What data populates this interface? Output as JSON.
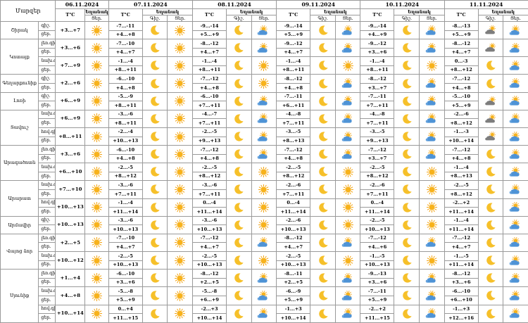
{
  "colors": {
    "sun": "#f7b21c",
    "sun_ray": "#f3a312",
    "moon": "#f6c02a",
    "cloud": "#4e93d6",
    "cloud_light": "#7fb4e6",
    "dark_cloud": "#7d7d7d",
    "grid": "#9a9a9a"
  },
  "header": {
    "corner": "Մարզեր",
    "dates": [
      "06.11.2024",
      "07.11.2024",
      "08.11.2024",
      "09.11.2024",
      "10.11.2024",
      "11.11.2024"
    ],
    "temp_label": "T°C",
    "weather_label": "Եղանակ",
    "day_label": "Ցեր.",
    "night_label": "Գիշ."
  },
  "icon_names": {
    "sun": "sun-icon",
    "moon": "moon-icon",
    "sun_cloud": "partly-cloudy-icon",
    "moon_cloud": "moon-cloud-icon",
    "dark_cloud": "cloudy-icon"
  },
  "rows": [
    {
      "region": "Շիրակ",
      "subs": [
        {
          "tod": "",
          "t": [
            "գիշ.",
            "ցեր."
          ],
          "d0": [
            "+3...+7",
            "sun"
          ],
          "days": [
            [
              "-7...-11",
              "+4...+8",
              "moon",
              "sun"
            ],
            [
              "-9...-14",
              "+5...+9",
              "moon",
              "sun_cloud"
            ],
            [
              "-9...-14",
              "+5...+9",
              "moon",
              "sun_cloud"
            ],
            [
              "-9...-14",
              "+4...+9",
              "moon",
              "sun_cloud"
            ],
            [
              "-8...-13",
              "+5...+9",
              "dark_cloud",
              "sun_cloud"
            ]
          ]
        }
      ]
    },
    {
      "region": "Կոտայք",
      "subs": [
        {
          "tod": "լեռ.",
          "t": [
            "գիշ.",
            "ցեր."
          ],
          "d0": [
            "+3...+6",
            "sun"
          ],
          "days": [
            [
              "-7...-10",
              "+4...+7",
              "moon",
              "sun"
            ],
            [
              "-8...-12",
              "+4...+7",
              "moon",
              "sun_cloud"
            ],
            [
              "-9...-12",
              "+4...+7",
              "moon",
              "sun_cloud"
            ],
            [
              "-9...-12",
              "+3...+6",
              "moon",
              "sun_cloud"
            ],
            [
              "-8...-12",
              "+4...+7",
              "dark_cloud",
              "sun_cloud"
            ]
          ]
        },
        {
          "tod": "նախ.",
          "t": [
            "գիշ.",
            "ցեր."
          ],
          "d0": [
            "+7...+9",
            "sun"
          ],
          "days": [
            [
              "-1...-4",
              "+8...+11",
              "moon",
              "sun"
            ],
            [
              "-1...-4",
              "+8...+11",
              "moon",
              "sun"
            ],
            [
              "-1...-4",
              "+8...+11",
              "moon",
              "sun"
            ],
            [
              "-1...-4",
              "+8...+11",
              "moon",
              "sun"
            ],
            [
              "0...-3",
              "+8...+12",
              "moon",
              "sun_cloud"
            ]
          ]
        }
      ]
    },
    {
      "region": "Գեղարքունիք",
      "subs": [
        {
          "tod": "",
          "t": [
            "գիշ.",
            "ցեր."
          ],
          "d0": [
            "+2...+6",
            "sun"
          ],
          "days": [
            [
              "-6...-10",
              "+4...+8",
              "moon",
              "sun"
            ],
            [
              "-7...-12",
              "+4...+8",
              "moon",
              "sun"
            ],
            [
              "-8...-12",
              "+4...+8",
              "moon",
              "sun_cloud"
            ],
            [
              "-8...-12",
              "+3...+7",
              "moon",
              "sun_cloud"
            ],
            [
              "-7...-12",
              "+4...+8",
              "moon",
              "sun_cloud"
            ]
          ]
        }
      ]
    },
    {
      "region": "Լոռի",
      "subs": [
        {
          "tod": "",
          "t": [
            "գիշ.",
            "ցեր."
          ],
          "d0": [
            "+6...+9",
            "sun"
          ],
          "days": [
            [
              "-5...-9",
              "+8...+11",
              "moon",
              "sun"
            ],
            [
              "-6...-10",
              "+7...+11",
              "moon",
              "sun_cloud"
            ],
            [
              "-7...-11",
              "+6...+11",
              "moon",
              "sun_cloud"
            ],
            [
              "-7...-11",
              "+7...+11",
              "moon",
              "sun_cloud"
            ],
            [
              "-5...-10",
              "+5...+9",
              "dark_cloud",
              "sun_cloud"
            ]
          ]
        }
      ]
    },
    {
      "region": "Տավուշ",
      "subs": [
        {
          "tod": "նախ.",
          "t": [
            "գիշ.",
            "ցեր."
          ],
          "d0": [
            "+6...+9",
            "sun"
          ],
          "days": [
            [
              "-3...-6",
              "+8...+11",
              "moon",
              "sun"
            ],
            [
              "-4...-7",
              "+7...+11",
              "moon",
              "sun_cloud"
            ],
            [
              "-4...-8",
              "+7...+11",
              "moon",
              "sun_cloud"
            ],
            [
              "-4...-8",
              "+7...+11",
              "moon",
              "sun_cloud"
            ],
            [
              "-2...-6",
              "+8...+12",
              "dark_cloud",
              "sun_cloud"
            ]
          ]
        },
        {
          "tod": "հով.",
          "t": [
            "գիշ.",
            "ցեր."
          ],
          "d0": [
            "+8...+11",
            "sun"
          ],
          "days": [
            [
              "-2...-4",
              "+10...+13",
              "moon",
              "sun"
            ],
            [
              "-2...-5",
              "+9...+13",
              "moon",
              "sun_cloud"
            ],
            [
              "-3...-5",
              "+8...+13",
              "moon",
              "sun_cloud"
            ],
            [
              "-3...-5",
              "+9...+13",
              "moon",
              "sun_cloud"
            ],
            [
              "-1...-3",
              "+10...+14",
              "dark_cloud",
              "sun_cloud"
            ]
          ]
        }
      ]
    },
    {
      "region": "Արագածոտն",
      "subs": [
        {
          "tod": "լեռ.",
          "t": [
            "գիշ.",
            "ցեր."
          ],
          "d0": [
            "+3...+6",
            "sun"
          ],
          "days": [
            [
              "-6...-10",
              "+4...+8",
              "moon",
              "sun"
            ],
            [
              "-7...-12",
              "+4...+8",
              "moon",
              "sun_cloud"
            ],
            [
              "-7...-12",
              "+4...+8",
              "moon",
              "sun_cloud"
            ],
            [
              "-7...-12",
              "+3...+7",
              "moon",
              "sun_cloud"
            ],
            [
              "-7...-12",
              "+4...+8",
              "moon",
              "sun_cloud"
            ]
          ]
        },
        {
          "tod": "նախ.",
          "t": [
            "գիշ.",
            "ցեր."
          ],
          "d0": [
            "+6...+10",
            "sun"
          ],
          "days": [
            [
              "-2...-5",
              "+8...+12",
              "moon",
              "sun"
            ],
            [
              "-2...-5",
              "+8...+12",
              "moon",
              "sun"
            ],
            [
              "-2...-5",
              "+8...+12",
              "moon",
              "sun"
            ],
            [
              "-2...-5",
              "+8...+12",
              "moon",
              "sun"
            ],
            [
              "-1...-4",
              "+8...+13",
              "moon",
              "sun_cloud"
            ]
          ]
        }
      ]
    },
    {
      "region": "Արարատ",
      "subs": [
        {
          "tod": "նախ.",
          "t": [
            "գիշ.",
            "ցեր."
          ],
          "d0": [
            "+7...+10",
            "sun"
          ],
          "days": [
            [
              "-3...-6",
              "+7...+11",
              "moon",
              "sun"
            ],
            [
              "-3...-6",
              "+7...+11",
              "moon",
              "sun"
            ],
            [
              "-2...-6",
              "+7...+11",
              "moon",
              "sun"
            ],
            [
              "-2...-6",
              "+7...+11",
              "moon",
              "sun"
            ],
            [
              "-2...-5",
              "+8...+12",
              "moon",
              "sun_cloud"
            ]
          ]
        },
        {
          "tod": "հով.",
          "t": [
            "գիշ.",
            "ցեր."
          ],
          "d0": [
            "+10...+13",
            "sun"
          ],
          "days": [
            [
              "-1...-4",
              "+11...+14",
              "moon",
              "sun"
            ],
            [
              "0...-4",
              "+11...+14",
              "moon",
              "sun"
            ],
            [
              "0...-4",
              "+11...+14",
              "moon",
              "sun"
            ],
            [
              "0...-4",
              "+11...+14",
              "moon",
              "sun"
            ],
            [
              "-2...+2",
              "+11...+14",
              "moon",
              "sun_cloud"
            ]
          ]
        }
      ]
    },
    {
      "region": "Արմավիր",
      "subs": [
        {
          "tod": "",
          "t": [
            "գիշ.",
            "ցեր."
          ],
          "d0": [
            "+10...+13",
            "sun"
          ],
          "days": [
            [
              "-3...-6",
              "+10...+13",
              "moon",
              "sun"
            ],
            [
              "-3...-6",
              "+10...+13",
              "moon",
              "sun"
            ],
            [
              "-2...-6",
              "+10...+13",
              "moon",
              "sun"
            ],
            [
              "-2...-5",
              "+10...+13",
              "moon",
              "sun"
            ],
            [
              "-1...-4",
              "+11...+14",
              "moon",
              "sun_cloud"
            ]
          ]
        }
      ]
    },
    {
      "region": "Վայոց ձոր",
      "subs": [
        {
          "tod": "լեռ.",
          "t": [
            "գիշ.",
            "ցեր."
          ],
          "d0": [
            "+2...+5",
            "sun"
          ],
          "days": [
            [
              "-7...-10",
              "+4...+7",
              "moon",
              "sun"
            ],
            [
              "-7...-12",
              "+4...+7",
              "moon",
              "sun_cloud"
            ],
            [
              "-8...-12",
              "+4...+7",
              "moon",
              "sun_cloud"
            ],
            [
              "-7...-12",
              "+4...+6",
              "moon",
              "sun_cloud"
            ],
            [
              "-7...-12",
              "+4...+7",
              "moon",
              "sun_cloud"
            ]
          ]
        },
        {
          "tod": "նախ.",
          "t": [
            "գիշ.",
            "ցեր."
          ],
          "d0": [
            "+10...+12",
            "sun"
          ],
          "days": [
            [
              "-2...-5",
              "+10...+13",
              "moon",
              "sun"
            ],
            [
              "-2...-5",
              "+10...+13",
              "moon",
              "sun"
            ],
            [
              "-2...-5",
              "+10...+13",
              "moon",
              "sun"
            ],
            [
              "-1...-5",
              "+10...+13",
              "moon",
              "sun"
            ],
            [
              "-1...-5",
              "+11...+14",
              "moon",
              "sun_cloud"
            ]
          ]
        }
      ]
    },
    {
      "region": "Սյունիք",
      "subs": [
        {
          "tod": "լեռ.",
          "t": [
            "գիշ.",
            "ցեր."
          ],
          "d0": [
            "+1...+4",
            "sun"
          ],
          "days": [
            [
              "-6...-10",
              "+3...+6",
              "moon",
              "sun"
            ],
            [
              "-8...-12",
              "+2...+5",
              "moon",
              "sun_cloud"
            ],
            [
              "-8...-11",
              "+2...+5",
              "moon",
              "sun_cloud"
            ],
            [
              "-9...-13",
              "+3...+6",
              "moon",
              "sun_cloud"
            ],
            [
              "-8...-12",
              "+3...+6",
              "moon",
              "sun_cloud"
            ]
          ]
        },
        {
          "tod": "նախ.",
          "t": [
            "գիշ.",
            "ցեր."
          ],
          "d0": [
            "+4...+8",
            "sun"
          ],
          "days": [
            [
              "-5...-8",
              "+5...+9",
              "moon",
              "sun"
            ],
            [
              "-5...-8",
              "+6...+9",
              "moon",
              "sun_cloud"
            ],
            [
              "-6...-9",
              "+5...+9",
              "moon",
              "sun_cloud"
            ],
            [
              "-7...-11",
              "+5...+9",
              "moon",
              "sun_cloud"
            ],
            [
              "-6...-10",
              "+6...+10",
              "moon",
              "sun_cloud"
            ]
          ]
        },
        {
          "tod": "հով.",
          "t": [
            "գիշ.",
            "ցեր."
          ],
          "d0": [
            "+10...+14",
            "sun"
          ],
          "days": [
            [
              "0...+4",
              "+11...+15",
              "moon",
              "sun"
            ],
            [
              "-2...+3",
              "+10...+14",
              "moon",
              "sun_cloud"
            ],
            [
              "-1...+3",
              "+10...+14",
              "moon",
              "sun_cloud"
            ],
            [
              "-2...+2",
              "+11...+15",
              "moon",
              "sun_cloud"
            ],
            [
              "-1...+3",
              "+12...+16",
              "moon",
              "sun_cloud"
            ]
          ]
        }
      ]
    }
  ]
}
